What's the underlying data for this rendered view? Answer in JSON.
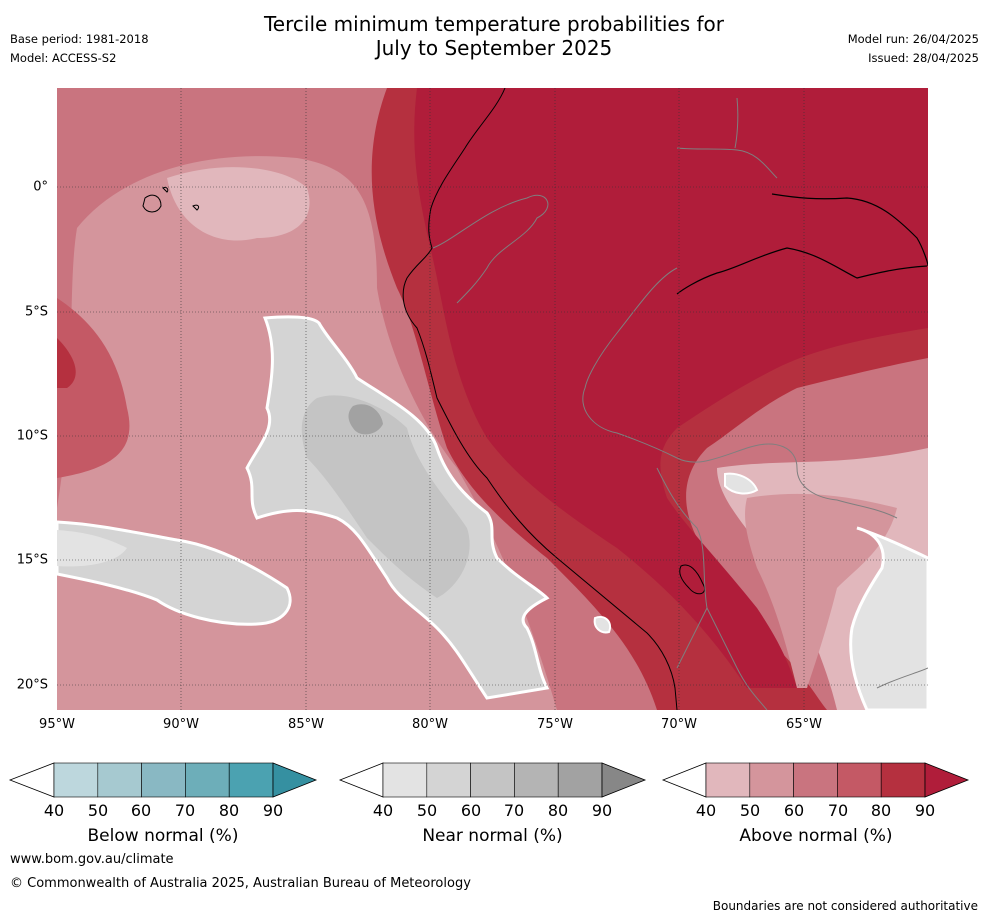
{
  "header": {
    "base_period": "Base period: 1981-2018",
    "model": "Model: ACCESS-S2",
    "title_line1": "Tercile minimum temperature probabilities for",
    "title_line2": "July to September 2025",
    "model_run": "Model run: 26/04/2025",
    "issued": "Issued: 28/04/2025"
  },
  "map": {
    "lon_ticks": [
      "95°W",
      "90°W",
      "85°W",
      "80°W",
      "75°W",
      "70°W",
      "65°W"
    ],
    "lat_ticks": [
      "0°",
      "5°S",
      "10°S",
      "15°S",
      "20°S"
    ],
    "grid": true
  },
  "colorbars": [
    {
      "name": "below",
      "label": "Below normal (%)",
      "ticks": [
        "40",
        "50",
        "60",
        "70",
        "80",
        "90"
      ],
      "colors": [
        "#ffffff",
        "#bdd7dd",
        "#a6c9d0",
        "#89b8c3",
        "#6daeb9",
        "#4ba2b1",
        "#3590a1"
      ]
    },
    {
      "name": "near",
      "label": "Near normal (%)",
      "ticks": [
        "40",
        "50",
        "60",
        "70",
        "80",
        "90"
      ],
      "colors": [
        "#ffffff",
        "#e3e3e3",
        "#d4d4d4",
        "#c4c4c4",
        "#b4b4b4",
        "#a2a2a2",
        "#878787"
      ]
    },
    {
      "name": "above",
      "label": "Above normal (%)",
      "ticks": [
        "40",
        "50",
        "60",
        "70",
        "80",
        "90"
      ],
      "colors": [
        "#ffffff",
        "#e1b7bc",
        "#d4959c",
        "#c9747f",
        "#c45965",
        "#b5303f",
        "#b01d3a"
      ]
    }
  ],
  "footer": {
    "website": "www.bom.gov.au/climate",
    "copyright": "© Commonwealth of Australia 2025, Australian Bureau of Meteorology",
    "disclaimer": "Boundaries are not considered authoritative"
  }
}
